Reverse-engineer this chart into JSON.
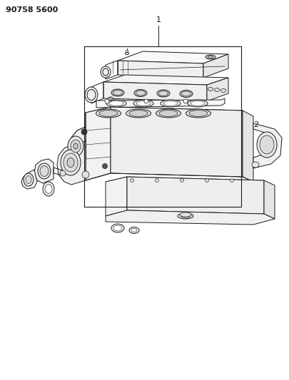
{
  "title": "90758 5600",
  "background_color": "#ffffff",
  "line_color": "#1a1a1a",
  "label1": "1",
  "label2": "2",
  "fig_width": 4.06,
  "fig_height": 5.33,
  "dpi": 100
}
